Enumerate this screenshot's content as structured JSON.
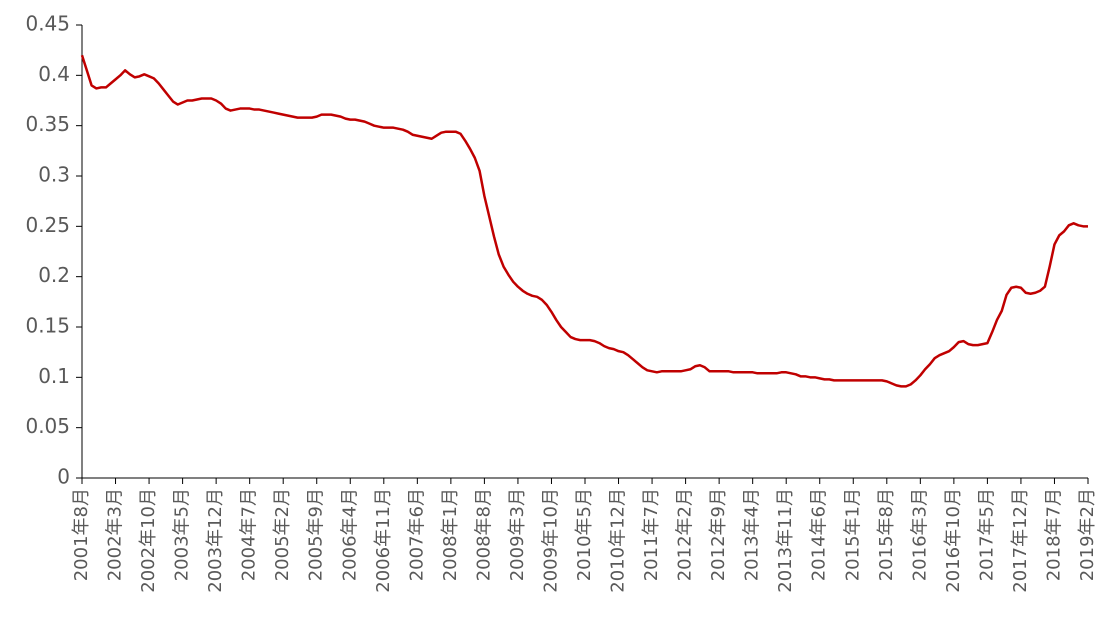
{
  "chart_data": {
    "type": "line",
    "categories": [
      "2001年8月",
      null,
      null,
      null,
      null,
      null,
      null,
      "2002年3月",
      null,
      null,
      null,
      null,
      null,
      null,
      "2002年10月",
      null,
      null,
      null,
      null,
      null,
      null,
      "2003年5月",
      null,
      null,
      null,
      null,
      null,
      null,
      "2003年12月",
      null,
      null,
      null,
      null,
      null,
      null,
      "2004年7月",
      null,
      null,
      null,
      null,
      null,
      null,
      "2005年2月",
      null,
      null,
      null,
      null,
      null,
      null,
      "2005年9月",
      null,
      null,
      null,
      null,
      null,
      null,
      "2006年4月",
      null,
      null,
      null,
      null,
      null,
      null,
      "2006年11月",
      null,
      null,
      null,
      null,
      null,
      null,
      "2007年6月",
      null,
      null,
      null,
      null,
      null,
      null,
      "2008年1月",
      null,
      null,
      null,
      null,
      null,
      null,
      "2008年8月",
      null,
      null,
      null,
      null,
      null,
      null,
      "2009年3月",
      null,
      null,
      null,
      null,
      null,
      null,
      "2009年10月",
      null,
      null,
      null,
      null,
      null,
      null,
      "2010年5月",
      null,
      null,
      null,
      null,
      null,
      null,
      "2010年12月",
      null,
      null,
      null,
      null,
      null,
      null,
      "2011年7月",
      null,
      null,
      null,
      null,
      null,
      null,
      "2012年2月",
      null,
      null,
      null,
      null,
      null,
      null,
      "2012年9月",
      null,
      null,
      null,
      null,
      null,
      null,
      "2013年4月",
      null,
      null,
      null,
      null,
      null,
      null,
      "2013年11月",
      null,
      null,
      null,
      null,
      null,
      null,
      "2014年6月",
      null,
      null,
      null,
      null,
      null,
      null,
      "2015年1月",
      null,
      null,
      null,
      null,
      null,
      null,
      "2015年8月",
      null,
      null,
      null,
      null,
      null,
      null,
      "2016年3月",
      null,
      null,
      null,
      null,
      null,
      null,
      "2016年10月",
      null,
      null,
      null,
      null,
      null,
      null,
      "2017年5月",
      null,
      null,
      null,
      null,
      null,
      null,
      "2017年12月",
      null,
      null,
      null,
      null,
      null,
      null,
      "2018年7月",
      null,
      null,
      null,
      null,
      null,
      null,
      "2019年2月"
    ],
    "series": [
      {
        "color": "#c00000",
        "values": [
          0.42,
          0.405,
          0.39,
          0.387,
          0.388,
          0.388,
          0.392,
          0.396,
          0.4,
          0.405,
          0.401,
          0.398,
          0.399,
          0.401,
          0.399,
          0.397,
          0.392,
          0.386,
          0.38,
          0.374,
          0.371,
          0.373,
          0.375,
          0.375,
          0.376,
          0.377,
          0.377,
          0.377,
          0.375,
          0.372,
          0.367,
          0.365,
          0.366,
          0.367,
          0.367,
          0.367,
          0.366,
          0.366,
          0.365,
          0.364,
          0.363,
          0.362,
          0.361,
          0.36,
          0.359,
          0.358,
          0.358,
          0.358,
          0.358,
          0.359,
          0.361,
          0.361,
          0.361,
          0.36,
          0.359,
          0.357,
          0.356,
          0.356,
          0.355,
          0.354,
          0.352,
          0.35,
          0.349,
          0.348,
          0.348,
          0.348,
          0.347,
          0.346,
          0.344,
          0.341,
          0.34,
          0.339,
          0.338,
          0.337,
          0.34,
          0.343,
          0.344,
          0.344,
          0.344,
          0.342,
          0.335,
          0.327,
          0.318,
          0.305,
          0.28,
          0.26,
          0.24,
          0.222,
          0.21,
          0.202,
          0.195,
          0.19,
          0.186,
          0.183,
          0.181,
          0.18,
          0.177,
          0.172,
          0.165,
          0.157,
          0.15,
          0.145,
          0.14,
          0.138,
          0.137,
          0.137,
          0.137,
          0.136,
          0.134,
          0.131,
          0.129,
          0.128,
          0.126,
          0.125,
          0.122,
          0.118,
          0.114,
          0.11,
          0.107,
          0.106,
          0.105,
          0.106,
          0.106,
          0.106,
          0.106,
          0.106,
          0.107,
          0.108,
          0.111,
          0.112,
          0.11,
          0.106,
          0.106,
          0.106,
          0.106,
          0.106,
          0.105,
          0.105,
          0.105,
          0.105,
          0.105,
          0.104,
          0.104,
          0.104,
          0.104,
          0.104,
          0.105,
          0.105,
          0.104,
          0.103,
          0.101,
          0.101,
          0.1,
          0.1,
          0.099,
          0.098,
          0.098,
          0.097,
          0.097,
          0.097,
          0.097,
          0.097,
          0.097,
          0.097,
          0.097,
          0.097,
          0.097,
          0.097,
          0.096,
          0.094,
          0.092,
          0.091,
          0.091,
          0.093,
          0.097,
          0.102,
          0.108,
          0.113,
          0.119,
          0.122,
          0.124,
          0.126,
          0.13,
          0.135,
          0.136,
          0.133,
          0.132,
          0.132,
          0.133,
          0.134,
          0.145,
          0.157,
          0.166,
          0.182,
          0.189,
          0.19,
          0.189,
          0.184,
          0.183,
          0.184,
          0.186,
          0.19,
          0.21,
          0.232,
          0.241,
          0.245,
          0.251,
          0.253,
          0.251,
          0.25,
          0.25
        ]
      }
    ],
    "ylim": [
      0,
      0.45
    ],
    "yticks": [
      0,
      0.05,
      0.1,
      0.15,
      0.2,
      0.25,
      0.3,
      0.35,
      0.4,
      0.45
    ]
  }
}
